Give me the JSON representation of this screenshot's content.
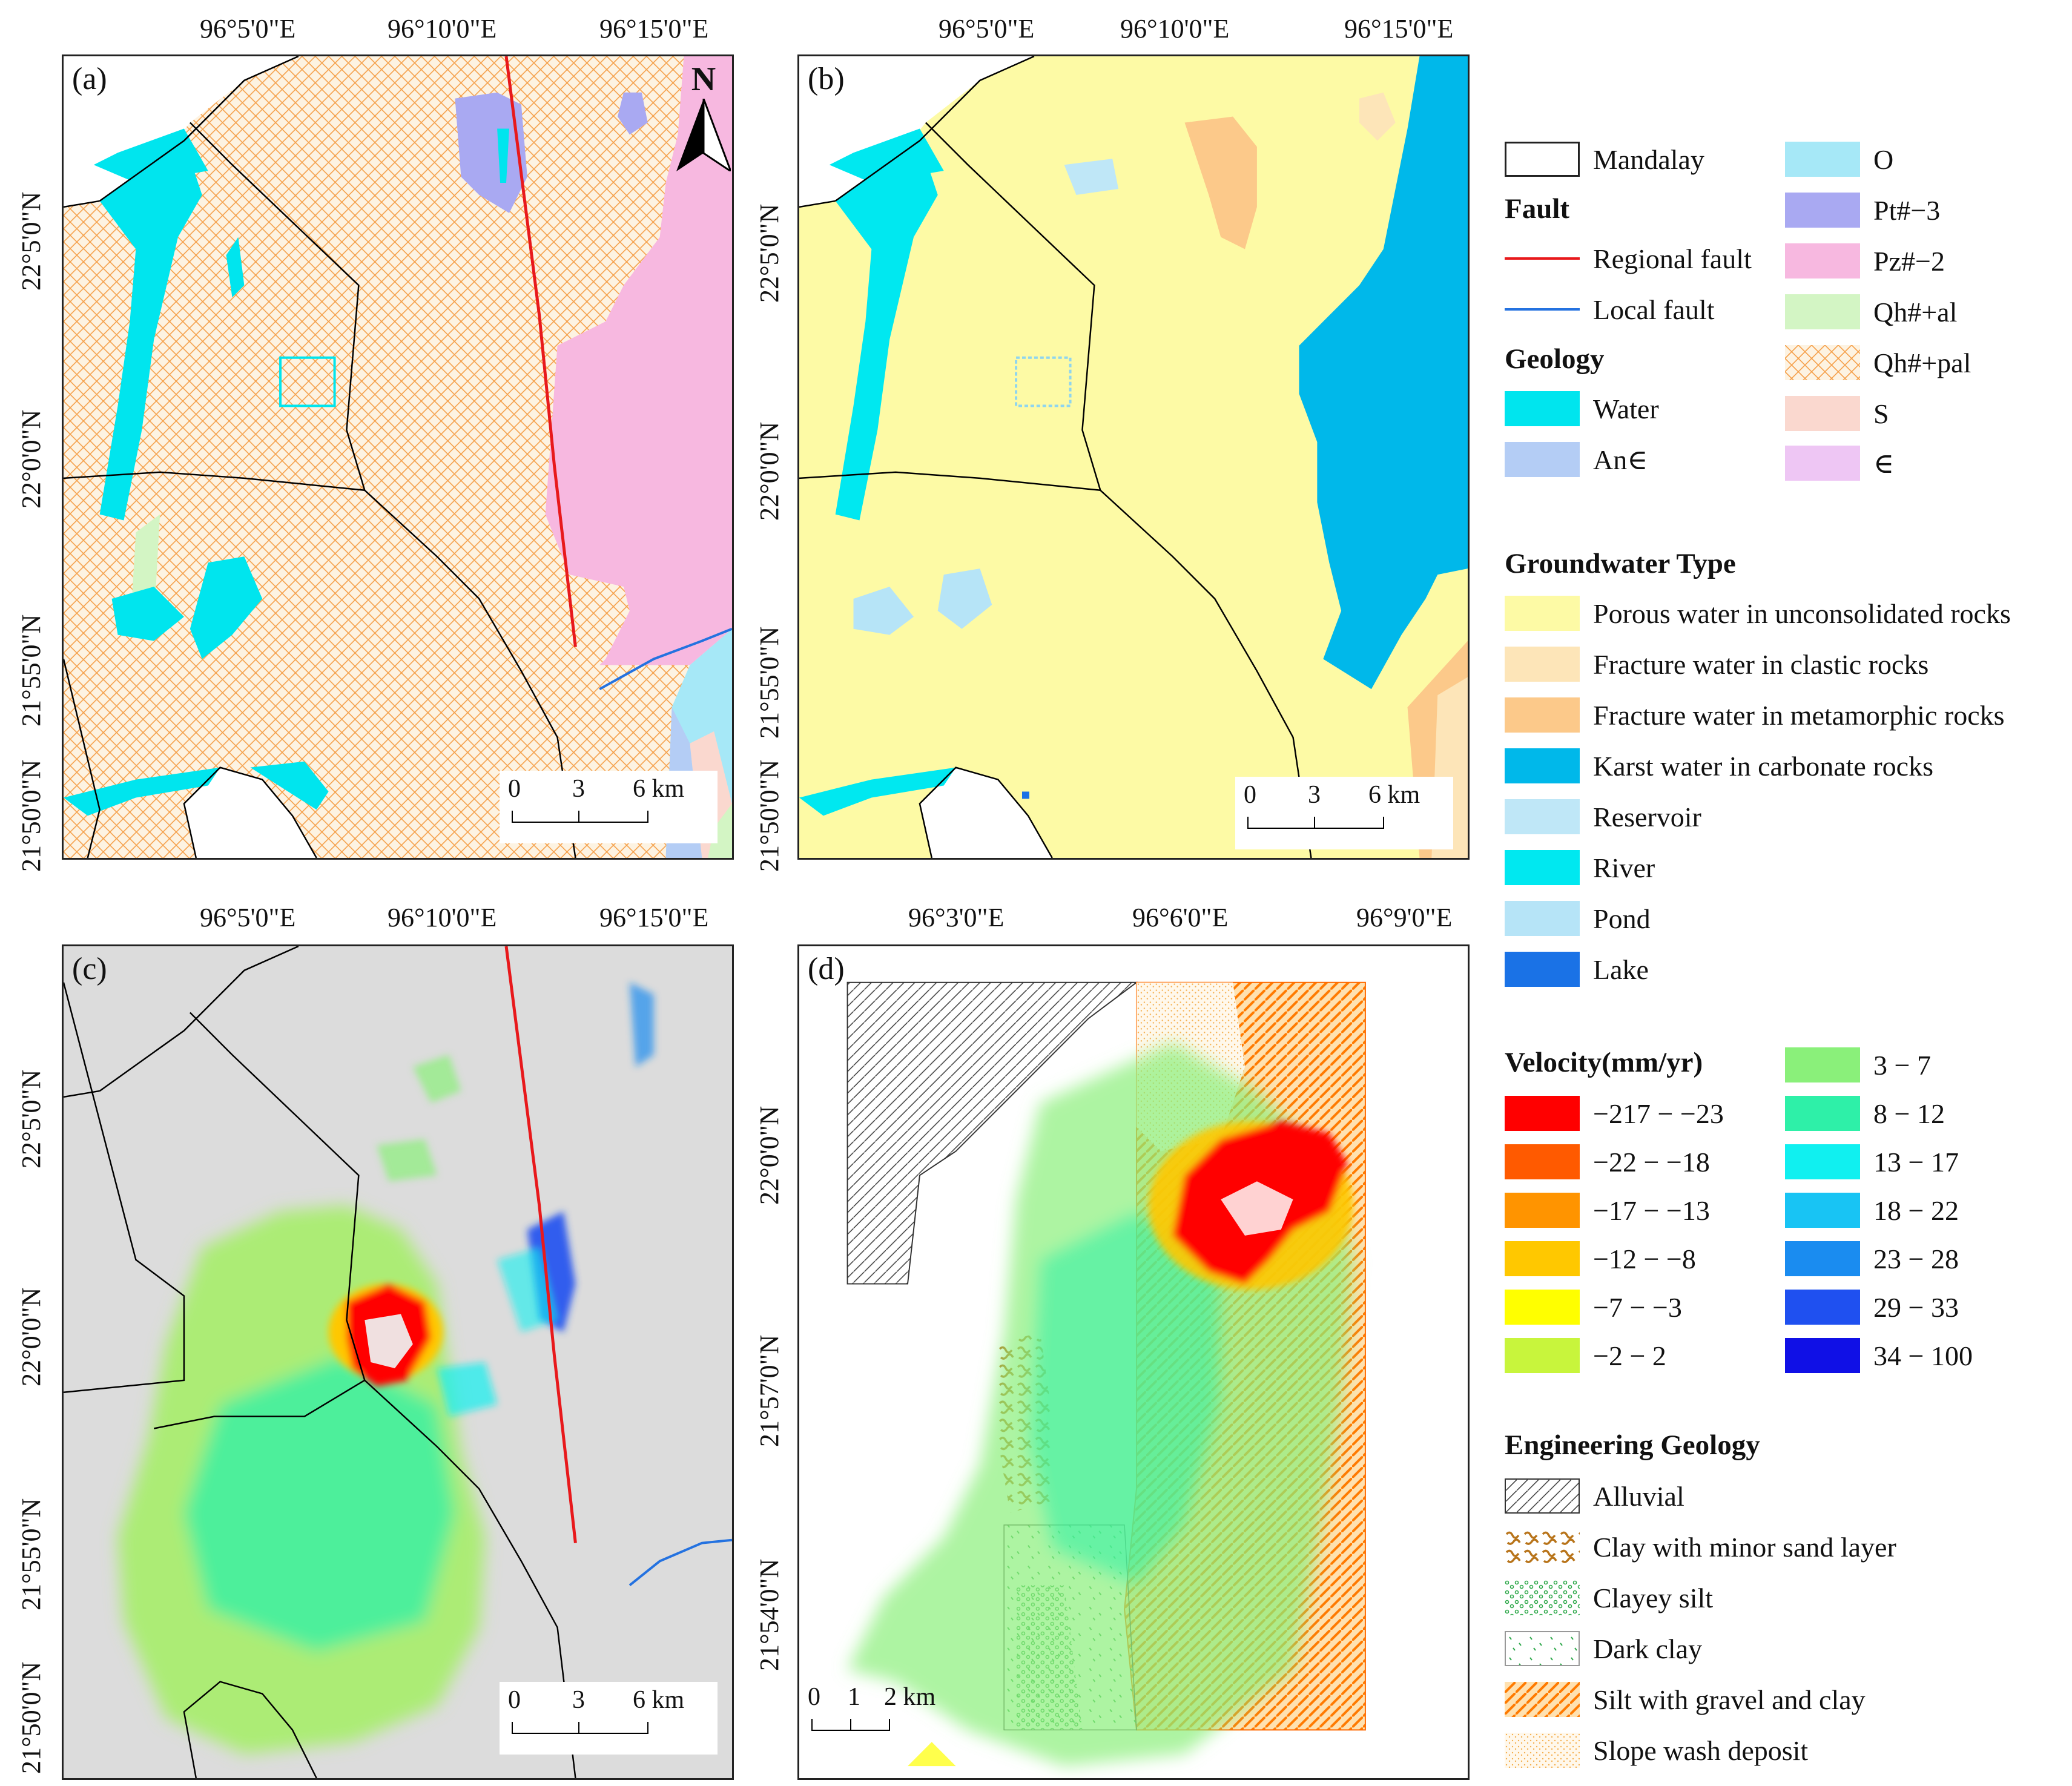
{
  "panels": {
    "a": {
      "label": "(a)",
      "xticks": [
        "96°5'0\"E",
        "96°10'0\"E",
        "96°15'0\"E"
      ],
      "yticks": [
        "22°5'0\"N",
        "22°0'0\"N",
        "21°55'0\"N",
        "21°50'0\"N"
      ],
      "scale": [
        "0",
        "3",
        "6 km"
      ],
      "north": "N"
    },
    "b": {
      "label": "(b)",
      "xticks": [
        "96°5'0\"E",
        "96°10'0\"E",
        "96°15'0\"E"
      ],
      "yticks": [
        "22°5'0\"N",
        "22°0'0\"N",
        "21°55'0\"N",
        "21°50'0\"N"
      ],
      "scale": [
        "0",
        "3",
        "6 km"
      ]
    },
    "c": {
      "label": "(c)",
      "xticks": [
        "96°5'0\"E",
        "96°10'0\"E",
        "96°15'0\"E"
      ],
      "yticks": [
        "22°5'0\"N",
        "22°0'0\"N",
        "21°55'0\"N",
        "21°50'0\"N"
      ],
      "scale": [
        "0",
        "3",
        "6 km"
      ]
    },
    "d": {
      "label": "(d)",
      "xticks": [
        "96°3'0\"E",
        "96°6'0\"E",
        "96°9'0\"E"
      ],
      "yticks": [
        "22°0'0\"N",
        "21°57'0\"N",
        "21°54'0\"N"
      ],
      "scale": [
        "0",
        "1",
        "2 km"
      ]
    }
  },
  "legend": {
    "boundary": {
      "label": "Mandalay",
      "color": "#ffffff"
    },
    "fault_head": "Fault",
    "faults": [
      {
        "label": "Regional fault",
        "color": "#e8191c"
      },
      {
        "label": "Local fault",
        "color": "#2472e0"
      }
    ],
    "geology_head": "Geology",
    "geology_left": [
      {
        "label": "Water",
        "color": "#00e5ee"
      },
      {
        "label": "An∈",
        "color": "#b4cdf5"
      }
    ],
    "geology_right": [
      {
        "label": "O",
        "color": "#a6e8f7"
      },
      {
        "label": "Pt#−3",
        "color": "#a9a9f2"
      },
      {
        "label": "Pz#−2",
        "color": "#f7b8e0"
      },
      {
        "label": "Qh#+al",
        "color": "#d3f5c4"
      },
      {
        "label": "Qh#+pal",
        "color": "#f5a04a"
      },
      {
        "label": "S",
        "color": "#fad8cf"
      },
      {
        "label": "∈",
        "color": "#eec6f4"
      }
    ],
    "groundwater_head": "Groundwater Type",
    "groundwater": [
      {
        "label": "Porous water in unconsolidated rocks",
        "color": "#fdfaa5"
      },
      {
        "label": "Fracture water in clastic rocks",
        "color": "#fde5b8"
      },
      {
        "label": "Fracture water in metamorphic rocks",
        "color": "#fcc98a"
      },
      {
        "label": "Karst water in carbonate rocks",
        "color": "#00b8ea"
      },
      {
        "label": "Reservoir",
        "color": "#bfe7f7"
      },
      {
        "label": "River",
        "color": "#00e8f0"
      },
      {
        "label": "Pond",
        "color": "#b6e4f7"
      },
      {
        "label": "Lake",
        "color": "#1a72e6"
      }
    ],
    "velocity_head": "Velocity(mm/yr)",
    "velocity_left": [
      {
        "label": "−217 − −23",
        "color": "#ff0000"
      },
      {
        "label": "−22 − −18",
        "color": "#ff5a00"
      },
      {
        "label": "−17 − −13",
        "color": "#ff9400"
      },
      {
        "label": "−12 − −8",
        "color": "#ffc800"
      },
      {
        "label": "−7 − −3",
        "color": "#ffff00"
      },
      {
        "label": "−2 − 2",
        "color": "#c8f53c"
      }
    ],
    "velocity_right": [
      {
        "label": "3 − 7",
        "color": "#8af07a"
      },
      {
        "label": "8 − 12",
        "color": "#2ef0a8"
      },
      {
        "label": "13 − 17",
        "color": "#10f0f0"
      },
      {
        "label": "18 − 22",
        "color": "#18c4f4"
      },
      {
        "label": "23 − 28",
        "color": "#1a8cf0"
      },
      {
        "label": "29 − 33",
        "color": "#1f50f0"
      },
      {
        "label": "34 − 100",
        "color": "#1010e6"
      }
    ],
    "eng_head": "Engineering Geology",
    "engineering": [
      {
        "label": "Alluvial",
        "color": "#333333"
      },
      {
        "label": "Clay with minor sand layer",
        "color": "#b8741a"
      },
      {
        "label": "Clayey silt",
        "color": "#2ea84a"
      },
      {
        "label": "Dark clay",
        "color": "#2ea84a"
      },
      {
        "label": "Silt with gravel and clay",
        "color": "#ff8a00"
      },
      {
        "label": "Slope wash deposit",
        "color": "#f5b050"
      }
    ]
  }
}
